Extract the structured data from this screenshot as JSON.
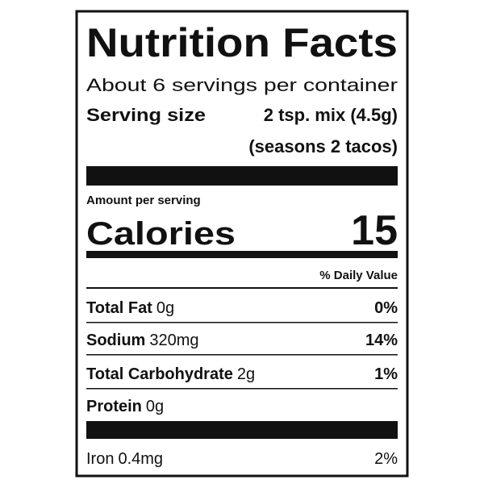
{
  "title": "Nutrition Facts",
  "servings": "About 6 servings per container",
  "serving_size": {
    "label": "Serving size",
    "value": "2 tsp. mix (4.5g)",
    "note": "(seasons 2 tacos)"
  },
  "amount_per_serving": "Amount per serving",
  "calories": {
    "label": "Calories",
    "value": "15"
  },
  "daily_value_header": "% Daily Value",
  "nutrients": [
    {
      "name": "Total Fat",
      "amount": "0g",
      "dv": "0%"
    },
    {
      "name": "Sodium",
      "amount": "320mg",
      "dv": "14%"
    },
    {
      "name": "Total Carbohydrate",
      "amount": "2g",
      "dv": "1%"
    },
    {
      "name": "Protein",
      "amount": "0g"
    }
  ],
  "minerals": [
    {
      "name": "Iron",
      "amount": "0.4mg",
      "dv": "2%"
    }
  ]
}
